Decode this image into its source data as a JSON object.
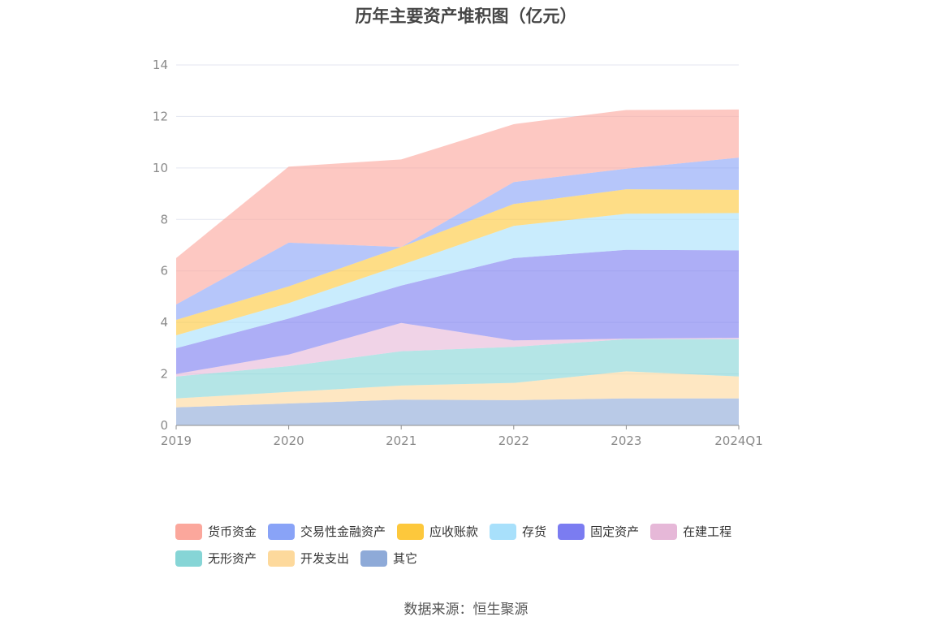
{
  "chart_data": {
    "type": "area",
    "stacked": true,
    "title": "历年主要资产堆积图（亿元）",
    "categories": [
      "2019",
      "2020",
      "2021",
      "2022",
      "2023",
      "2024Q1"
    ],
    "ylim": [
      0,
      14
    ],
    "yticks": [
      "0",
      "2",
      "4",
      "6",
      "8",
      "10",
      "12",
      "14"
    ],
    "grid": true,
    "legend_position": "bottom",
    "series": [
      {
        "name": "其它",
        "color": "#8eaad8",
        "values": [
          0.7,
          0.85,
          1.0,
          0.98,
          1.05,
          1.05
        ]
      },
      {
        "name": "开发支出",
        "color": "#fdd99c",
        "values": [
          0.35,
          0.45,
          0.55,
          0.67,
          1.05,
          0.85
        ]
      },
      {
        "name": "无形资产",
        "color": "#86d5d6",
        "values": [
          0.85,
          1.0,
          1.33,
          1.4,
          1.25,
          1.45
        ]
      },
      {
        "name": "在建工程",
        "color": "#e6b8d8",
        "values": [
          0.1,
          0.45,
          1.1,
          0.25,
          0.02,
          0.05
        ]
      },
      {
        "name": "固定资产",
        "color": "#7b7cf1",
        "values": [
          1.0,
          1.4,
          1.45,
          3.2,
          3.45,
          3.4
        ]
      },
      {
        "name": "存货",
        "color": "#a8e0fb",
        "values": [
          0.5,
          0.6,
          0.8,
          1.25,
          1.4,
          1.45
        ]
      },
      {
        "name": "应收账款",
        "color": "#fdc83c",
        "values": [
          0.6,
          0.65,
          0.7,
          0.85,
          0.95,
          0.9
        ]
      },
      {
        "name": "交易性金融资产",
        "color": "#89a3f7",
        "values": [
          0.6,
          1.7,
          0.0,
          0.85,
          0.8,
          1.25
        ]
      },
      {
        "name": "货币资金",
        "color": "#fba79c",
        "values": [
          1.8,
          2.95,
          3.4,
          2.25,
          2.28,
          1.87
        ]
      }
    ],
    "legend_order": [
      "货币资金",
      "交易性金融资产",
      "应收账款",
      "存货",
      "固定资产",
      "在建工程",
      "无形资产",
      "开发支出",
      "其它"
    ]
  },
  "source_text": "数据来源：恒生聚源"
}
